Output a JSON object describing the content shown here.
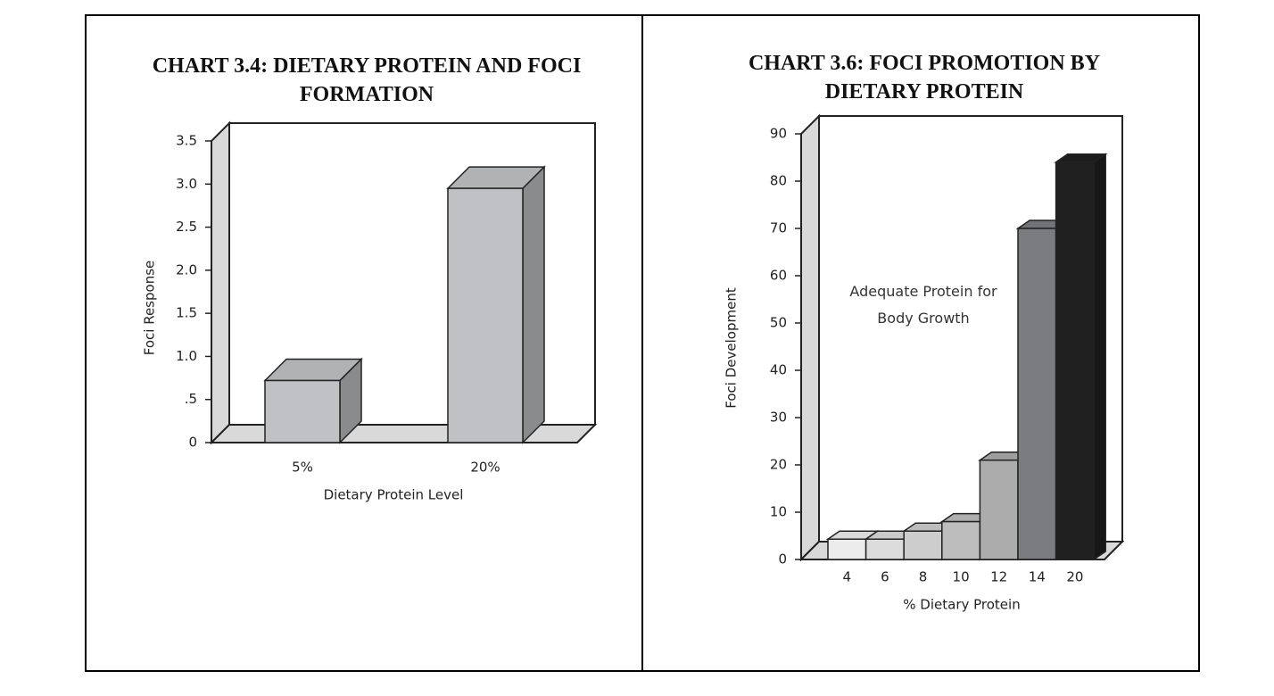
{
  "chart_data": [
    {
      "type": "bar",
      "title": "CHART 3.4: DIETARY PROTEIN AND FOCI FORMATION",
      "x_label": "Dietary Protein Level",
      "y_label": "Foci Response",
      "categories": [
        "5%",
        "20%"
      ],
      "values": [
        0.72,
        2.95
      ],
      "color": "#c0c1c4",
      "ylim": [
        0,
        3.5
      ],
      "yticks": [
        0,
        {
          "value": 0.5,
          "label": ".5"
        },
        {
          "value": 1,
          "label": "1.0"
        },
        {
          "value": 1.5,
          "label": "1.5"
        },
        {
          "value": 2,
          "label": "2.0"
        },
        {
          "value": 2.5,
          "label": "2.5"
        },
        {
          "value": 3,
          "label": "3.0"
        },
        3.5
      ]
    },
    {
      "type": "bar",
      "title": "CHART 3.6: FOCI PROMOTION BY DIETARY PROTEIN",
      "x_label": "% Dietary Protein",
      "y_label": "Foci Development",
      "annotation": "Adequate Protein for Body Growth",
      "categories": [
        "4",
        "6",
        "8",
        "10",
        "12",
        "14",
        "20"
      ],
      "values": [
        4.3,
        4.3,
        6,
        8,
        21,
        70,
        84
      ],
      "colors": [
        "#ececec",
        "#dcdcdc",
        "#cdcdcd",
        "#bdbdbd",
        "#acacac",
        "#7b7c7f",
        "#202020"
      ],
      "ylim": [
        0,
        90
      ],
      "yticks": [
        0,
        10,
        20,
        30,
        40,
        50,
        60,
        70,
        80,
        90
      ]
    }
  ]
}
